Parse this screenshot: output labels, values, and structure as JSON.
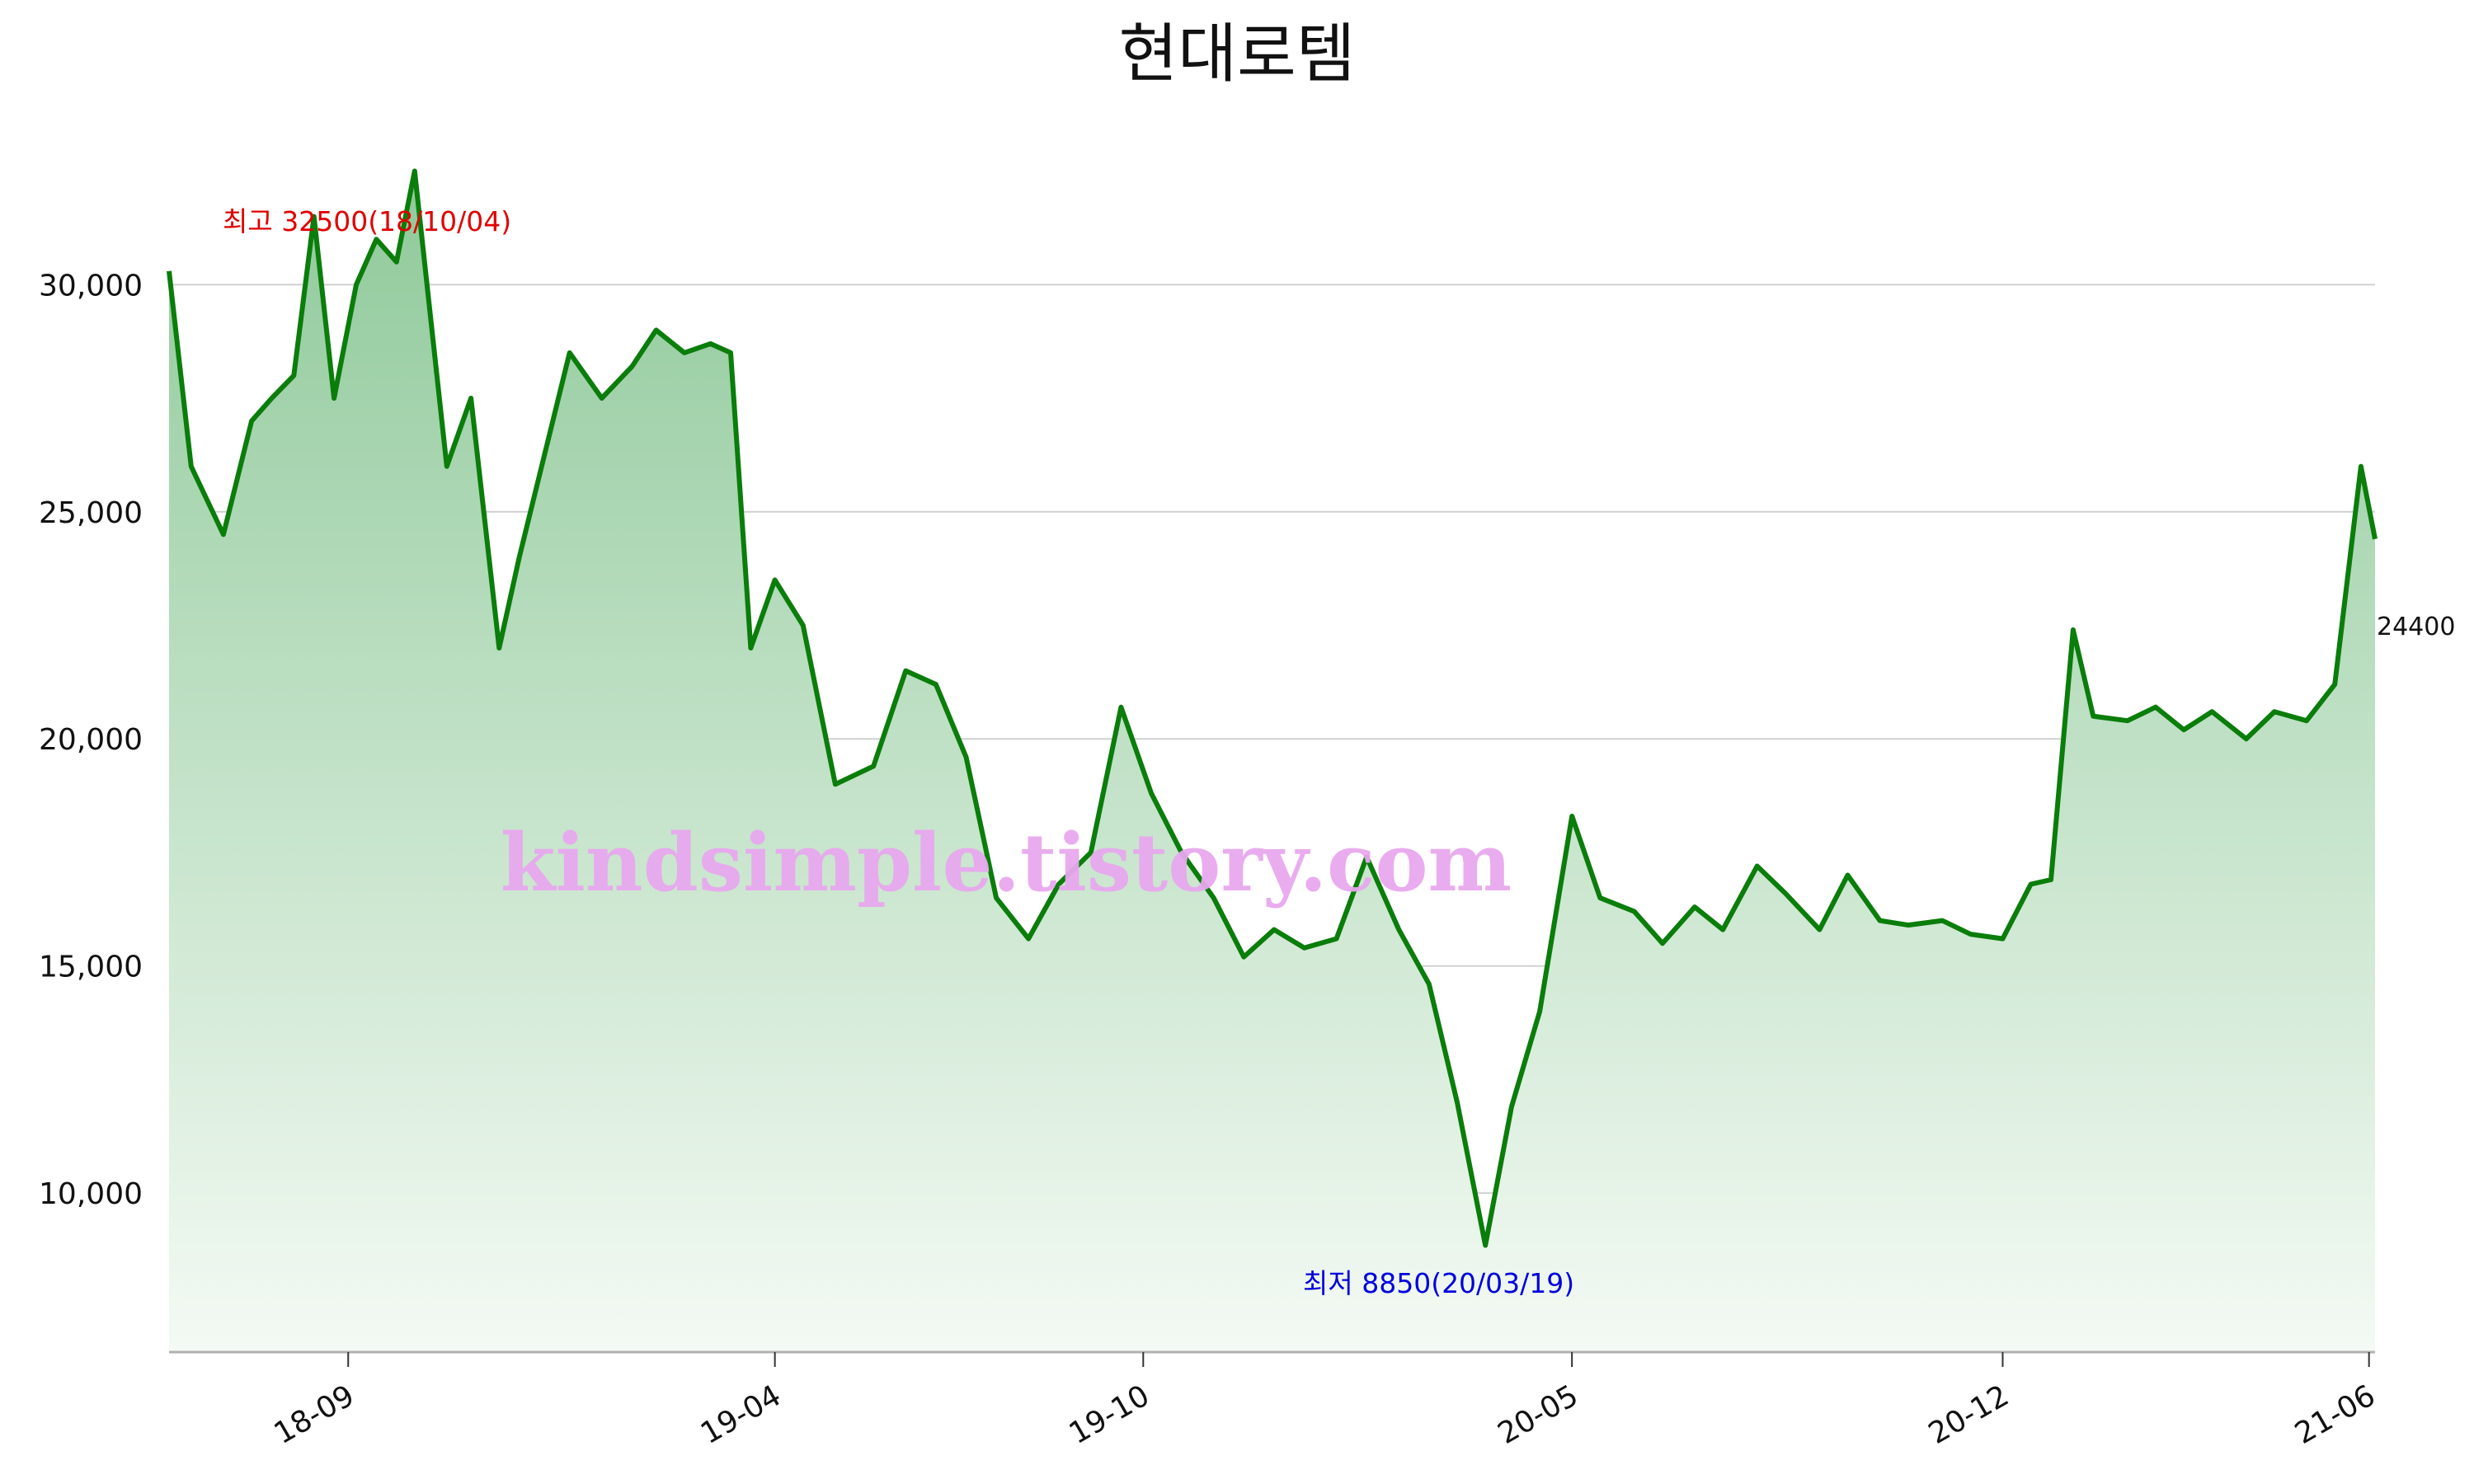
{
  "chart_data": {
    "type": "area",
    "title": "현대로템",
    "xlabel": "",
    "ylabel": "",
    "ylim": [
      6500,
      33000
    ],
    "y_ticks": [
      10000,
      15000,
      20000,
      25000,
      30000
    ],
    "y_tick_labels": [
      "10,000",
      "15,000",
      "20,000",
      "25,000",
      "30,000"
    ],
    "x_range": [
      "2018-06-04",
      "2021-06-04"
    ],
    "x_ticks": [
      "2018-09-01",
      "2019-04-01",
      "2019-10-01",
      "2020-05-01",
      "2020-12-01",
      "2021-06-01"
    ],
    "x_tick_labels": [
      "18-09",
      "19-04",
      "19-10",
      "20-05",
      "20-12",
      "21-06"
    ],
    "grid": "horizontal",
    "line_color": "#0a7d0a",
    "fill_top_color": "#8fc99a",
    "fill_bottom_color": "#f4faf4",
    "series": [
      {
        "x": [
          "2018-06-04",
          "2018-06-15",
          "2018-07-01",
          "2018-07-15",
          "2018-07-25",
          "2018-08-05",
          "2018-08-15",
          "2018-08-25",
          "2018-09-05",
          "2018-09-15",
          "2018-09-25",
          "2018-10-04",
          "2018-10-20",
          "2018-11-01",
          "2018-11-15",
          "2018-11-25",
          "2018-12-05",
          "2018-12-20",
          "2019-01-05",
          "2019-01-20",
          "2019-02-01",
          "2019-02-15",
          "2019-02-28",
          "2019-03-10",
          "2019-03-20",
          "2019-04-01",
          "2019-04-15",
          "2019-05-01",
          "2019-05-20",
          "2019-06-05",
          "2019-06-20",
          "2019-07-05",
          "2019-07-20",
          "2019-08-05",
          "2019-08-20",
          "2019-09-05",
          "2019-09-20",
          "2019-10-05",
          "2019-10-20",
          "2019-11-05",
          "2019-11-20",
          "2019-12-05",
          "2019-12-20",
          "2020-01-05",
          "2020-01-20",
          "2020-02-05",
          "2020-02-20",
          "2020-03-05",
          "2020-03-19",
          "2020-04-01",
          "2020-04-15",
          "2020-05-01",
          "2020-05-15",
          "2020-06-01",
          "2020-06-15",
          "2020-07-01",
          "2020-07-15",
          "2020-08-01",
          "2020-08-15",
          "2020-09-01",
          "2020-09-15",
          "2020-10-01",
          "2020-10-15",
          "2020-11-01",
          "2020-11-15",
          "2020-12-01",
          "2020-12-15",
          "2020-12-25",
          "2021-01-05",
          "2021-01-15",
          "2021-02-01",
          "2021-02-15",
          "2021-03-01",
          "2021-03-15",
          "2021-04-01",
          "2021-04-15",
          "2021-05-01",
          "2021-05-15",
          "2021-05-28",
          "2021-06-04"
        ],
        "values": [
          30300,
          26000,
          24500,
          27000,
          27500,
          28000,
          31500,
          27500,
          30000,
          31000,
          30500,
          32500,
          26000,
          27500,
          22000,
          24000,
          25800,
          28500,
          27500,
          28200,
          29000,
          28500,
          28700,
          28500,
          22000,
          23500,
          22500,
          19000,
          19400,
          21500,
          21200,
          19600,
          16500,
          15600,
          16800,
          17500,
          20700,
          18800,
          17500,
          16500,
          15200,
          15800,
          15400,
          15600,
          17400,
          15800,
          14600,
          12000,
          8850,
          11900,
          14000,
          18300,
          16500,
          16200,
          15500,
          16300,
          15800,
          17200,
          16600,
          15800,
          17000,
          16000,
          15900,
          16000,
          15700,
          15600,
          16800,
          16900,
          22400,
          20500,
          20400,
          20700,
          20200,
          20600,
          20000,
          20600,
          20400,
          21200,
          26000,
          24400
        ]
      }
    ],
    "annotations": {
      "max_label": "최고 32500(18/10/04)",
      "max_color": "#e00000",
      "min_label": "최저 8850(20/03/19)",
      "min_color": "#0000dd",
      "last_value_label": "24400"
    },
    "watermark": "kindsimple.tistory.com"
  }
}
